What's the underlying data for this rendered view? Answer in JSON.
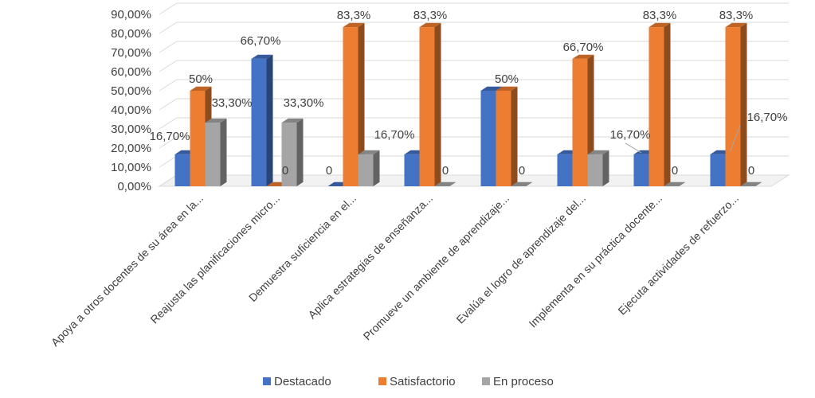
{
  "chart_data": {
    "type": "bar",
    "categories": [
      "Apoya a otros docentes de su área en la...",
      "Reajusta las planificaciones micro...",
      "Demuestra suficiencia en el...",
      "Aplica estrategias de enseñanza...",
      "Promueve un ambiente de aprendizaje...",
      "Evalúa el logro de aprendizaje del...",
      "Implementa en su práctica docente...",
      "Ejecuta actividades de refuerzo..."
    ],
    "series": [
      {
        "name": "Destacado",
        "color": "#4472C4",
        "values": [
          16.7,
          66.7,
          0,
          16.7,
          50,
          16.7,
          16.7,
          16.7
        ],
        "labels": [
          "16,70%",
          "66,70%",
          "0",
          "",
          "",
          "",
          "16,70%",
          "16,70%"
        ]
      },
      {
        "name": "Satisfactorio",
        "color": "#ED7D31",
        "values": [
          50,
          0,
          83.3,
          83.3,
          50,
          66.7,
          83.3,
          83.3
        ],
        "labels": [
          "50%",
          "0",
          "83,3%",
          "83,3%",
          "50%",
          "66,70%",
          "83,3%",
          "83,3%"
        ]
      },
      {
        "name": "En proceso",
        "color": "#A5A5A5",
        "values": [
          33.3,
          33.3,
          16.7,
          0,
          0,
          16.7,
          0,
          0
        ],
        "labels": [
          "33,30%",
          "33,30%",
          "16,70%",
          "0",
          "0",
          "",
          "0",
          "0"
        ]
      }
    ],
    "y_ticks": [
      "0,00%",
      "10,00%",
      "20,00%",
      "30,00%",
      "40,00%",
      "50,00%",
      "60,00%",
      "70,00%",
      "80,00%",
      "90,00%"
    ],
    "ylim": [
      0,
      90
    ],
    "grid": true,
    "legend_position": "bottom",
    "style": "3d-clustered-column"
  }
}
